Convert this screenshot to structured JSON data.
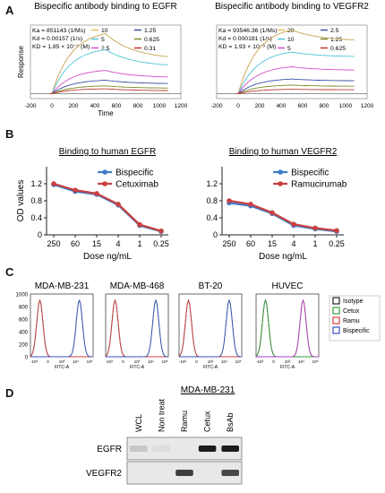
{
  "panel_letters": {
    "a": "A",
    "b": "B",
    "c": "C",
    "d": "D"
  },
  "chart_data": [
    {
      "type": "line",
      "title": "Bispecific antibody binding  to EGFR",
      "ylabel": "Response",
      "xlabel": "Time",
      "xlim": [
        -200,
        1200
      ],
      "xticks": [
        -200,
        0,
        200,
        400,
        600,
        800,
        1000,
        1200
      ],
      "kinetics": [
        "Ka = 851143 (1/Ms)",
        "Kd = 0.00157 (1/s)",
        "KD = 1.85 × 10⁻⁹ (M)"
      ],
      "legend": [
        {
          "label": "10",
          "color": "#e8c05a"
        },
        {
          "label": "1.25",
          "color": "#3b4fa0"
        },
        {
          "label": "5",
          "color": "#4ec3d4"
        },
        {
          "label": "0.625",
          "color": "#7a8a2a"
        },
        {
          "label": "2.5",
          "color": "#d44fc9"
        },
        {
          "label": "0.31",
          "color": "#c0392b"
        }
      ],
      "series": [
        {
          "name": "10",
          "color": "#c8a24a",
          "peak": 245,
          "end": 140
        },
        {
          "name": "5",
          "color": "#4ec3d4",
          "peak": 180,
          "end": 110
        },
        {
          "name": "2.5",
          "color": "#d44fc9",
          "peak": 95,
          "end": 65
        },
        {
          "name": "1.25",
          "color": "#3b4fa0",
          "peak": 55,
          "end": 40
        },
        {
          "name": "0.625",
          "color": "#7a8a2a",
          "peak": 32,
          "end": 22
        },
        {
          "name": "0.31",
          "color": "#c0392b",
          "peak": 20,
          "end": 12
        }
      ],
      "ylim": [
        -20,
        280
      ]
    },
    {
      "type": "line",
      "title": "Bispecific antibody binding  to VEGFR2",
      "xlim": [
        -200,
        1200
      ],
      "xticks": [
        -200,
        0,
        200,
        400,
        600,
        800,
        1000,
        1200
      ],
      "kinetics": [
        "Ka = 93546.36 (1/Ms)",
        "Kd = 0.000181 (1/s)",
        "KD = 1.93 × 10⁻⁹ (M)"
      ],
      "legend": [
        {
          "label": "20",
          "color": "#e8c05a"
        },
        {
          "label": "2.5",
          "color": "#3b4fa0"
        },
        {
          "label": "10",
          "color": "#4ec3d4"
        },
        {
          "label": "1.25",
          "color": "#7a8a2a"
        },
        {
          "label": "5",
          "color": "#d44fc9"
        },
        {
          "label": "0.625",
          "color": "#c0392b"
        }
      ],
      "series": [
        {
          "name": "20",
          "color": "#c8a24a",
          "peak": 260,
          "end": 215
        },
        {
          "name": "10",
          "color": "#4ec3d4",
          "peak": 170,
          "end": 150
        },
        {
          "name": "5",
          "color": "#d44fc9",
          "peak": 110,
          "end": 95
        },
        {
          "name": "2.5",
          "color": "#3b4fa0",
          "peak": 60,
          "end": 52
        },
        {
          "name": "1.25",
          "color": "#7a8a2a",
          "peak": 35,
          "end": 30
        },
        {
          "name": "0.625",
          "color": "#c0392b",
          "peak": 18,
          "end": 16
        }
      ],
      "ylim": [
        -20,
        280
      ]
    },
    {
      "type": "line",
      "title": "Binding to human EGFR",
      "ylabel": "OD values",
      "xlabel": "Dose ng/mL",
      "categories": [
        "250",
        "60",
        "15",
        "4",
        "1",
        "0.25"
      ],
      "yticks": [
        "0",
        "0.4",
        "0.8",
        "1.2"
      ],
      "ylim": [
        0,
        1.6
      ],
      "series": [
        {
          "name": "Bispecific",
          "color": "#3d7cc9",
          "values": [
            1.18,
            1.02,
            0.95,
            0.7,
            0.22,
            0.08
          ]
        },
        {
          "name": "Cetuximab",
          "color": "#c94040",
          "values": [
            1.2,
            1.05,
            0.97,
            0.72,
            0.24,
            0.09
          ]
        }
      ]
    },
    {
      "type": "line",
      "title": "Binding to human VEGFR2",
      "xlabel": "Dose ng/mL",
      "categories": [
        "250",
        "60",
        "15",
        "4",
        "1",
        "0.25"
      ],
      "yticks": [
        "0",
        "0.4",
        "0.8",
        "1.2"
      ],
      "ylim": [
        0,
        1.6
      ],
      "series": [
        {
          "name": "Bispecific",
          "color": "#3d7cc9",
          "values": [
            0.75,
            0.68,
            0.5,
            0.22,
            0.14,
            0.08
          ]
        },
        {
          "name": "Ramucirumab",
          "color": "#c94040",
          "values": [
            0.8,
            0.72,
            0.52,
            0.25,
            0.16,
            0.1
          ]
        }
      ]
    }
  ],
  "flow": {
    "yticks": [
      "1000",
      "800",
      "600",
      "400",
      "200",
      "0"
    ],
    "xtick_labels": [
      "-10³",
      "0",
      "10³",
      "10⁴",
      "10⁵"
    ],
    "xaxis": "FITC-A",
    "panels": [
      {
        "title": "MDA-MB-231",
        "peaks": [
          {
            "c": "#222",
            "x": 0.15
          },
          {
            "c": "#d04040",
            "x": 0.15
          },
          {
            "c": "#3a9a3a",
            "x": 0.78
          },
          {
            "c": "#3b4fc0",
            "x": 0.78
          }
        ]
      },
      {
        "title": "MDA-MB-468",
        "peaks": [
          {
            "c": "#222",
            "x": 0.15
          },
          {
            "c": "#d04040",
            "x": 0.15
          },
          {
            "c": "#3a9a3a",
            "x": 0.8
          },
          {
            "c": "#3b4fc0",
            "x": 0.8
          }
        ]
      },
      {
        "title": "BT-20",
        "peaks": [
          {
            "c": "#222",
            "x": 0.15
          },
          {
            "c": "#d04040",
            "x": 0.15
          },
          {
            "c": "#3a9a3a",
            "x": 0.8
          },
          {
            "c": "#3b4fc0",
            "x": 0.8
          }
        ]
      },
      {
        "title": "HUVEC",
        "peaks": [
          {
            "c": "#222",
            "x": 0.15
          },
          {
            "c": "#3a9a3a",
            "x": 0.15
          },
          {
            "c": "#d04040",
            "x": 0.75
          },
          {
            "c": "#a040c0",
            "x": 0.75
          }
        ]
      }
    ],
    "legend": [
      {
        "label": "Isotype",
        "color": "#222222"
      },
      {
        "label": "Cetux",
        "color": "#3a9a3a"
      },
      {
        "label": "Ramu",
        "color": "#d04040"
      },
      {
        "label": "Bispecific",
        "color": "#3b4fc0"
      }
    ]
  },
  "western": {
    "title": "MDA-MB-231",
    "lanes": [
      "WCL",
      "Non treat",
      "Ramu",
      "Cetux",
      "BsAb"
    ],
    "rows": [
      {
        "label": "EGFR",
        "bands": [
          0.15,
          0.05,
          0.0,
          0.95,
          0.95
        ]
      },
      {
        "label": "VEGFR2",
        "bands": [
          0.0,
          0.0,
          0.8,
          0.0,
          0.75
        ]
      }
    ]
  }
}
